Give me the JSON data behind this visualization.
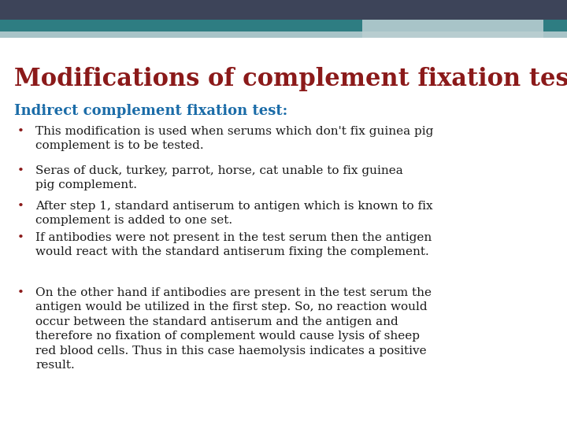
{
  "title": "Modifications of complement fixation test",
  "title_color": "#8B1A1A",
  "subtitle": "Indirect complement fixation test:",
  "subtitle_color": "#1B6CA8",
  "background_color": "#FFFFFF",
  "header_bar1_color": "#3D4459",
  "header_bar2_color": "#2E7D82",
  "header_bar3_color": "#A8C4C8",
  "header_bar4_color": "#B8CDD0",
  "bullet_color": "#8B1A1A",
  "text_color": "#1a1a1a",
  "bullets": [
    "This modification is used when serums which don't fix guinea pig\ncomplement is to be tested.",
    "Seras of duck, turkey, parrot, horse, cat unable to fix guinea\npig complement.",
    "After step 1, standard antiserum to antigen which is known to fix\ncomplement is added to one set.",
    "If antibodies were not present in the test serum then the antigen\nwould react with the standard antiserum fixing the complement.",
    "On the other hand if antibodies are present in the test serum the\nantigen would be utilized in the first step. So, no reaction would\noccur between the standard antiserum and the antigen and\ntherefore no fixation of complement would cause lysis of sheep\nred blood cells. Thus in this case haemolysis indicates a positive\nresult."
  ],
  "title_fontsize": 22,
  "subtitle_fontsize": 13,
  "body_fontsize": 11
}
